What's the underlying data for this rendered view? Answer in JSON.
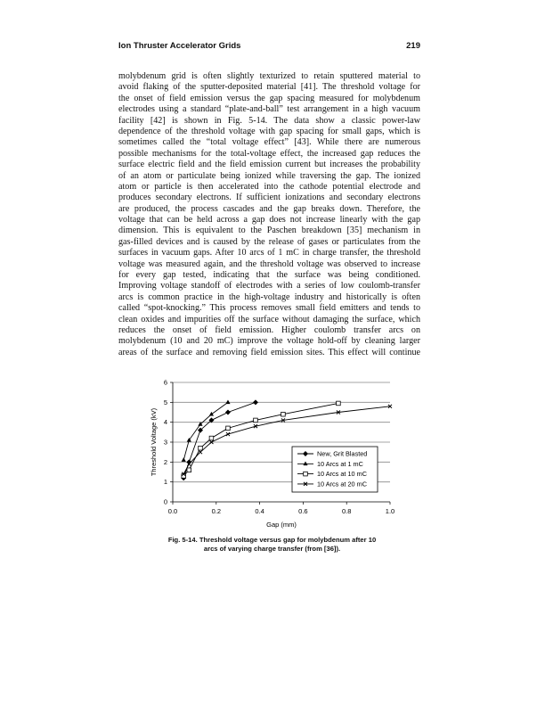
{
  "header": {
    "title": "Ion Thruster Accelerator Grids",
    "page_number": "219"
  },
  "body_lines": [
    "molybdenum grid is often slightly texturized to retain sputtered material to",
    "avoid flaking of the sputter-deposited material [41]. The threshold voltage for",
    "the onset of field emission versus the gap spacing measured for molybdenum",
    "electrodes using a standard “plate-and-ball” test arrangement in a high vacuum",
    "facility [42] is shown in Fig. 5-14. The data show a classic power-law",
    "dependence of the threshold voltage with gap spacing for small gaps, which is",
    "sometimes called the “total voltage effect” [43]. While there are numerous",
    "possible mechanisms for the total-voltage effect, the increased gap reduces the",
    "surface electric field and the field emission current but increases the probability",
    "of an atom or particulate being ionized while traversing the gap. The ionized",
    "atom or particle is then accelerated into the cathode potential electrode and",
    "produces secondary electrons. If sufficient ionizations and secondary electrons",
    "are produced, the process cascades and the gap breaks down. Therefore, the",
    "voltage that can be held across a gap does not increase linearly with the gap",
    "dimension. This is equivalent to the Paschen breakdown [35] mechanism in",
    "gas-filled devices and is caused by the release of gases or particulates from the",
    "surfaces in vacuum gaps. After 10 arcs of 1 mC in charge transfer, the threshold",
    "voltage was measured again, and the threshold voltage was observed to increase",
    "for every gap tested, indicating that the surface was being conditioned.",
    "Improving voltage standoff of electrodes with a series of low coulomb-transfer",
    "arcs is common practice in the high-voltage industry and historically is often",
    "called “spot-knocking.” This process removes small field emitters and tends to",
    "clean oxides and impurities off the surface without damaging the surface, which",
    "reduces the onset of field emission. Higher coulomb transfer arcs on",
    "molybdenum (10 and 20 mC) improve the voltage hold-off by cleaning larger",
    "areas of the surface and removing field emission sites. This effect will continue"
  ],
  "caption": {
    "line1": "Fig. 5-14. Threshold voltage versus gap for molybdenum after 10",
    "line2": "arcs of varying charge transfer (from [36])."
  },
  "chart_data": {
    "type": "line",
    "xlabel": "Gap (mm)",
    "ylabel": "Threshold Voltage (kV)",
    "xlim": [
      0,
      1.0
    ],
    "ylim": [
      0,
      6
    ],
    "xticks": [
      "0.0",
      "0.2",
      "0.4",
      "0.6",
      "0.8",
      "1.0"
    ],
    "yticks": [
      "0",
      "1",
      "2",
      "3",
      "4",
      "5",
      "6"
    ],
    "grid": "horizontal",
    "legend": "lower-right",
    "series": [
      {
        "name": "New, Grit Blasted",
        "marker": "diamond",
        "x": [
          0.05,
          0.075,
          0.127,
          0.178,
          0.254,
          0.381
        ],
        "y": [
          1.2,
          2.0,
          3.6,
          4.1,
          4.5,
          5.0
        ]
      },
      {
        "name": "10 Arcs at 1 mC",
        "marker": "triangle",
        "x": [
          0.05,
          0.075,
          0.127,
          0.178,
          0.254
        ],
        "y": [
          2.1,
          3.1,
          3.9,
          4.4,
          5.0
        ]
      },
      {
        "name": "10 Arcs at 10 mC",
        "marker": "open-square",
        "x": [
          0.05,
          0.075,
          0.127,
          0.178,
          0.254,
          0.381,
          0.508,
          0.762
        ],
        "y": [
          1.3,
          1.6,
          2.7,
          3.2,
          3.7,
          4.1,
          4.4,
          4.95
        ]
      },
      {
        "name": "10 Arcs at 20 mC",
        "marker": "x",
        "x": [
          0.05,
          0.075,
          0.127,
          0.178,
          0.254,
          0.381,
          0.508,
          0.762,
          1.0
        ],
        "y": [
          1.4,
          1.9,
          2.5,
          3.0,
          3.4,
          3.8,
          4.1,
          4.5,
          4.8
        ]
      }
    ]
  }
}
